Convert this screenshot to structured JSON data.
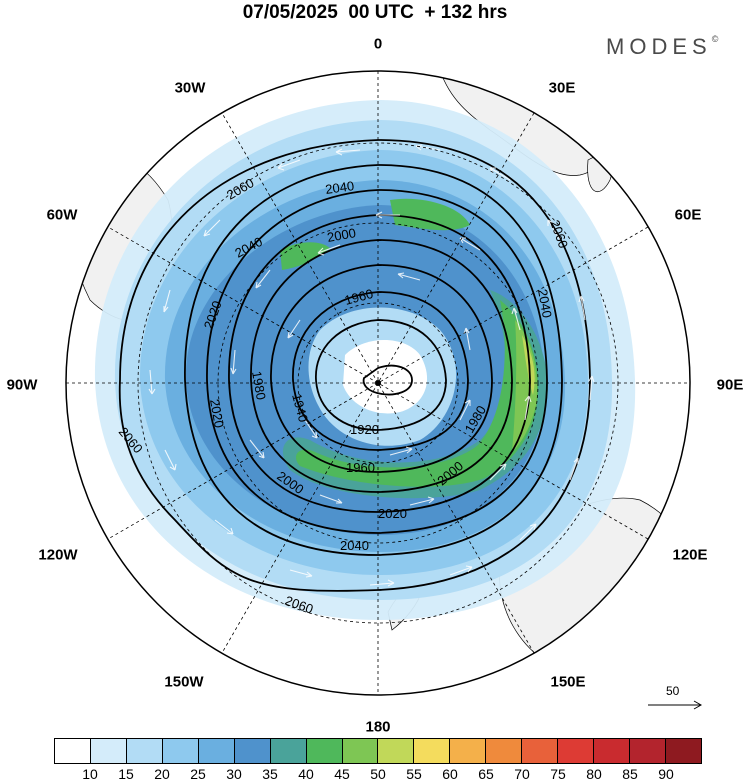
{
  "title": "07/05/2025  00 UTC  + 132 hrs",
  "brand": "MODES",
  "brand_mark": "©",
  "longitude_labels": {
    "0": "0",
    "30E": "30E",
    "60E": "60E",
    "90E": "90E",
    "120E": "120E",
    "150E": "150E",
    "180": "180",
    "150W": "150W",
    "120W": "120W",
    "90W": "90W",
    "60W": "60W",
    "30W": "30W"
  },
  "reference_vector": "50",
  "contour_labels": [
    "2060",
    "2040",
    "2000",
    "2040",
    "2020",
    "1960",
    "2020",
    "1980",
    "1940",
    "1920",
    "1960",
    "2000",
    "2020",
    "2040",
    "2060",
    "1980",
    "2000",
    "2040",
    "2060",
    "2060"
  ],
  "colorbar": {
    "colors": [
      "#ffffff",
      "#d4ecfa",
      "#b2dcf5",
      "#8ec9ee",
      "#6aafe0",
      "#4f92cc",
      "#4aa39a",
      "#4fb85b",
      "#7ec654",
      "#c1d859",
      "#f4dc5d",
      "#f4b04a",
      "#ef8a3c",
      "#e8613a",
      "#dd3b34",
      "#c92b2f",
      "#b3242d",
      "#8e1a20"
    ],
    "labels": [
      "10",
      "15",
      "20",
      "25",
      "30",
      "35",
      "40",
      "45",
      "50",
      "55",
      "60",
      "65",
      "70",
      "75",
      "80",
      "85",
      "90"
    ]
  },
  "map_colors": {
    "land": "#f1f1f1",
    "coast": "#000000",
    "contour": "#000000",
    "grid": "#000000"
  }
}
